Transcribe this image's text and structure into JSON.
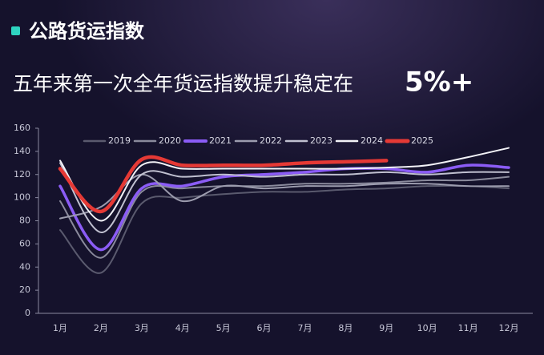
{
  "header": {
    "title": "公路货运指数",
    "subtitle": "五年来第一次全年货运指数提升稳定在",
    "subtitle_highlight": "5%+"
  },
  "chart_data": {
    "type": "line",
    "categories": [
      "1月",
      "2月",
      "3月",
      "4月",
      "5月",
      "6月",
      "7月",
      "8月",
      "9月",
      "10月",
      "11月",
      "12月"
    ],
    "series": [
      {
        "name": "2019",
        "color": "#5a5a6e",
        "values": [
          72,
          35,
          95,
          100,
          103,
          105,
          105,
          107,
          108,
          110,
          110,
          108
        ]
      },
      {
        "name": "2020",
        "color": "#8a8a9c",
        "values": [
          97,
          48,
          105,
          108,
          110,
          110,
          112,
          112,
          113,
          115,
          115,
          118
        ]
      },
      {
        "name": "2021",
        "color": "#8b5cf6",
        "values": [
          110,
          55,
          108,
          110,
          118,
          120,
          122,
          125,
          125,
          122,
          128,
          126
        ]
      },
      {
        "name": "2022",
        "color": "#9c9cae",
        "values": [
          82,
          92,
          120,
          97,
          110,
          108,
          110,
          110,
          112,
          112,
          110,
          110
        ]
      },
      {
        "name": "2023",
        "color": "#c0c0d0",
        "values": [
          130,
          70,
          120,
          118,
          120,
          118,
          120,
          120,
          122,
          120,
          122,
          122
        ]
      },
      {
        "name": "2024",
        "color": "#f2f2f7",
        "values": [
          132,
          80,
          128,
          125,
          125,
          125,
          125,
          125,
          126,
          128,
          135,
          143
        ]
      },
      {
        "name": "2025",
        "color": "#e53935",
        "values": [
          125,
          88,
          133,
          128,
          128,
          128,
          130,
          131,
          132,
          null,
          null,
          null
        ]
      }
    ],
    "ylim": [
      0,
      160
    ],
    "yticks": [
      0,
      20,
      40,
      60,
      80,
      100,
      120,
      140,
      160
    ],
    "grid": false
  }
}
